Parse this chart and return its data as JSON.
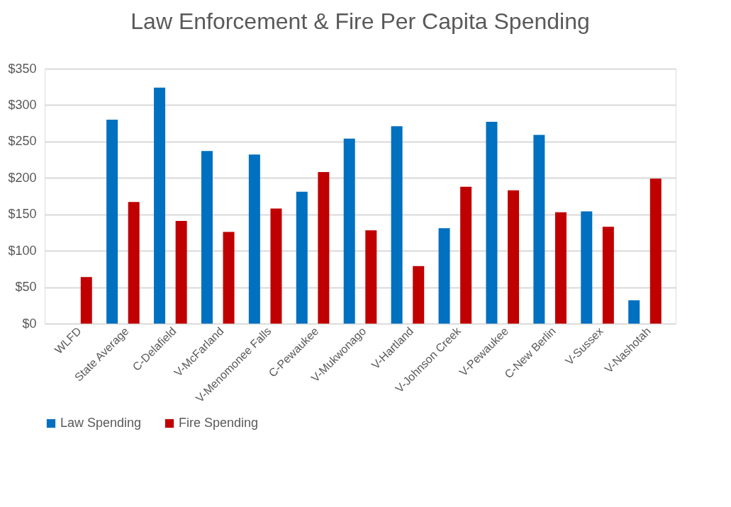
{
  "chart_data": {
    "type": "bar",
    "title": "Law Enforcement & Fire Per Capita Spending",
    "categories": [
      "WLFD",
      "State Average",
      "C-Delafield",
      "V-McFarland",
      "V-Menomonee Falls",
      "C-Pewaukee",
      "V-Mukwonago",
      "V-Hartland",
      "V-Johnson Creek",
      "V-Pewaukee",
      "C-New Berlin",
      "V-Sussex",
      "V-Nashotah"
    ],
    "series": [
      {
        "name": "Law Spending",
        "color": "#0070c0",
        "values": [
          null,
          280,
          324,
          237,
          232,
          181,
          254,
          271,
          131,
          277,
          259,
          154,
          32
        ]
      },
      {
        "name": "Fire Spending",
        "color": "#c00000",
        "values": [
          64,
          167,
          141,
          126,
          158,
          208,
          128,
          79,
          188,
          183,
          153,
          133,
          199
        ]
      }
    ],
    "ylim": [
      0,
      350
    ],
    "yticks": [
      {
        "value": 0,
        "label": "$0"
      },
      {
        "value": 50,
        "label": "$50"
      },
      {
        "value": 100,
        "label": "$100"
      },
      {
        "value": 150,
        "label": "$150"
      },
      {
        "value": 200,
        "label": "$200"
      },
      {
        "value": 250,
        "label": "$250"
      },
      {
        "value": 300,
        "label": "$300"
      },
      {
        "value": 350,
        "label": "$350"
      }
    ],
    "grid": "y",
    "legend": "bottom"
  }
}
